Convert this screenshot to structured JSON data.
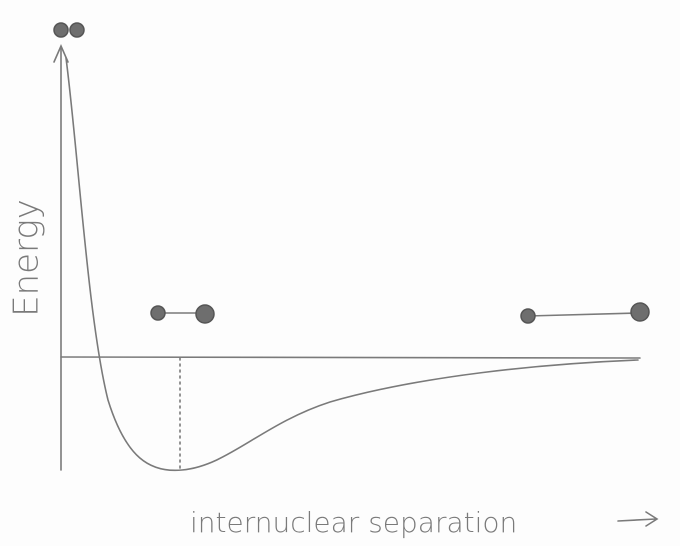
{
  "axes": {
    "y_label": "Energy",
    "x_label": "internuclear separation"
  }
}
